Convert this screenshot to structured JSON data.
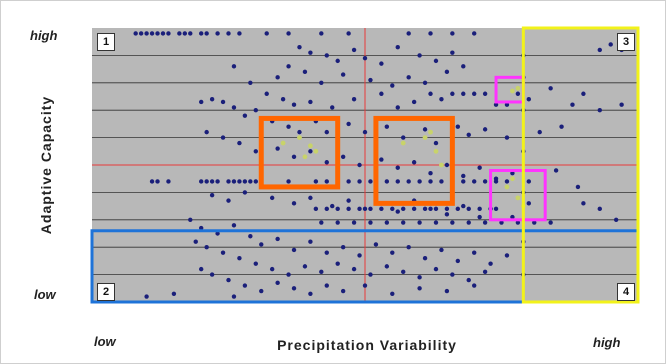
{
  "chart_data": {
    "type": "scatter",
    "xlabel": "Precipitation Variability",
    "ylabel": "Adaptive Capacity",
    "x_tick_labels": [
      "low",
      "high"
    ],
    "y_tick_labels": [
      "high",
      "low"
    ],
    "xlim": [
      0,
      1
    ],
    "ylim": [
      0,
      1
    ],
    "grid": true,
    "quadrant_labels": [
      "1",
      "2",
      "3",
      "4"
    ],
    "colors": {
      "background": "#b8b8b8",
      "points": "#1a1f7a",
      "highlight_points": "#c8d36a",
      "orange_box": "#ff6600",
      "magenta_box": "#ff33ff",
      "blue_box": "#1e73d8",
      "yellow_box": "#f2f21a",
      "divider": "#e83a3a"
    },
    "highlight_boxes": [
      {
        "color": "orange",
        "x": [
          0.31,
          0.45
        ],
        "y": [
          0.42,
          0.67
        ]
      },
      {
        "color": "orange",
        "x": [
          0.52,
          0.66
        ],
        "y": [
          0.36,
          0.67
        ]
      },
      {
        "color": "magenta",
        "x": [
          0.74,
          0.79
        ],
        "y": [
          0.73,
          0.82
        ]
      },
      {
        "color": "magenta",
        "x": [
          0.73,
          0.83
        ],
        "y": [
          0.3,
          0.48
        ]
      },
      {
        "color": "blue",
        "x": [
          0.0,
          1.0
        ],
        "y": [
          0.0,
          0.26
        ]
      },
      {
        "color": "yellow",
        "x": [
          0.79,
          1.0
        ],
        "y": [
          0.0,
          1.0
        ]
      }
    ],
    "series": [
      {
        "points": [
          [
            0.08,
            0.98
          ],
          [
            0.09,
            0.98
          ],
          [
            0.1,
            0.98
          ],
          [
            0.11,
            0.98
          ],
          [
            0.12,
            0.98
          ],
          [
            0.13,
            0.98
          ],
          [
            0.14,
            0.98
          ],
          [
            0.16,
            0.98
          ],
          [
            0.17,
            0.98
          ],
          [
            0.18,
            0.98
          ],
          [
            0.2,
            0.98
          ],
          [
            0.21,
            0.98
          ],
          [
            0.23,
            0.98
          ],
          [
            0.25,
            0.98
          ],
          [
            0.27,
            0.98
          ],
          [
            0.32,
            0.98
          ],
          [
            0.36,
            0.98
          ],
          [
            0.42,
            0.98
          ],
          [
            0.47,
            0.98
          ],
          [
            0.58,
            0.98
          ],
          [
            0.62,
            0.98
          ],
          [
            0.66,
            0.98
          ],
          [
            0.7,
            0.98
          ],
          [
            0.95,
            0.94
          ],
          [
            0.93,
            0.92
          ],
          [
            0.97,
            0.92
          ],
          [
            0.38,
            0.93
          ],
          [
            0.4,
            0.91
          ],
          [
            0.43,
            0.9
          ],
          [
            0.45,
            0.88
          ],
          [
            0.48,
            0.92
          ],
          [
            0.5,
            0.89
          ],
          [
            0.53,
            0.87
          ],
          [
            0.56,
            0.93
          ],
          [
            0.6,
            0.9
          ],
          [
            0.63,
            0.88
          ],
          [
            0.66,
            0.91
          ],
          [
            0.68,
            0.86
          ],
          [
            0.36,
            0.86
          ],
          [
            0.34,
            0.82
          ],
          [
            0.39,
            0.84
          ],
          [
            0.42,
            0.8
          ],
          [
            0.46,
            0.83
          ],
          [
            0.51,
            0.81
          ],
          [
            0.55,
            0.79
          ],
          [
            0.58,
            0.82
          ],
          [
            0.61,
            0.8
          ],
          [
            0.65,
            0.84
          ],
          [
            0.26,
            0.86
          ],
          [
            0.29,
            0.8
          ],
          [
            0.32,
            0.76
          ],
          [
            0.35,
            0.74
          ],
          [
            0.37,
            0.72
          ],
          [
            0.4,
            0.73
          ],
          [
            0.44,
            0.71
          ],
          [
            0.48,
            0.74
          ],
          [
            0.53,
            0.76
          ],
          [
            0.56,
            0.71
          ],
          [
            0.59,
            0.73
          ],
          [
            0.62,
            0.76
          ],
          [
            0.64,
            0.74
          ],
          [
            0.66,
            0.76
          ],
          [
            0.68,
            0.76
          ],
          [
            0.7,
            0.76
          ],
          [
            0.72,
            0.76
          ],
          [
            0.74,
            0.72
          ],
          [
            0.76,
            0.72
          ],
          [
            0.78,
            0.76
          ],
          [
            0.8,
            0.74
          ],
          [
            0.84,
            0.78
          ],
          [
            0.88,
            0.72
          ],
          [
            0.9,
            0.76
          ],
          [
            0.93,
            0.7
          ],
          [
            0.97,
            0.72
          ],
          [
            0.2,
            0.73
          ],
          [
            0.22,
            0.74
          ],
          [
            0.24,
            0.73
          ],
          [
            0.26,
            0.71
          ],
          [
            0.28,
            0.68
          ],
          [
            0.3,
            0.7
          ],
          [
            0.33,
            0.66
          ],
          [
            0.36,
            0.64
          ],
          [
            0.38,
            0.62
          ],
          [
            0.41,
            0.66
          ],
          [
            0.43,
            0.62
          ],
          [
            0.47,
            0.65
          ],
          [
            0.5,
            0.62
          ],
          [
            0.54,
            0.64
          ],
          [
            0.57,
            0.6
          ],
          [
            0.61,
            0.63
          ],
          [
            0.63,
            0.58
          ],
          [
            0.67,
            0.64
          ],
          [
            0.69,
            0.61
          ],
          [
            0.72,
            0.63
          ],
          [
            0.76,
            0.6
          ],
          [
            0.82,
            0.62
          ],
          [
            0.86,
            0.64
          ],
          [
            0.21,
            0.62
          ],
          [
            0.24,
            0.6
          ],
          [
            0.27,
            0.58
          ],
          [
            0.3,
            0.55
          ],
          [
            0.34,
            0.56
          ],
          [
            0.37,
            0.53
          ],
          [
            0.4,
            0.55
          ],
          [
            0.43,
            0.51
          ],
          [
            0.46,
            0.53
          ],
          [
            0.49,
            0.5
          ],
          [
            0.53,
            0.52
          ],
          [
            0.56,
            0.49
          ],
          [
            0.59,
            0.51
          ],
          [
            0.62,
            0.47
          ],
          [
            0.65,
            0.5
          ],
          [
            0.68,
            0.46
          ],
          [
            0.71,
            0.49
          ],
          [
            0.74,
            0.45
          ],
          [
            0.77,
            0.47
          ],
          [
            0.8,
            0.44
          ],
          [
            0.85,
            0.48
          ],
          [
            0.89,
            0.42
          ],
          [
            0.41,
            0.44
          ],
          [
            0.43,
            0.44
          ],
          [
            0.45,
            0.44
          ],
          [
            0.47,
            0.44
          ],
          [
            0.49,
            0.44
          ],
          [
            0.51,
            0.44
          ],
          [
            0.52,
            0.44
          ],
          [
            0.54,
            0.44
          ],
          [
            0.56,
            0.44
          ],
          [
            0.58,
            0.44
          ],
          [
            0.6,
            0.44
          ],
          [
            0.62,
            0.44
          ],
          [
            0.64,
            0.44
          ],
          [
            0.66,
            0.44
          ],
          [
            0.68,
            0.44
          ],
          [
            0.7,
            0.44
          ],
          [
            0.72,
            0.44
          ],
          [
            0.74,
            0.44
          ],
          [
            0.76,
            0.44
          ],
          [
            0.2,
            0.44
          ],
          [
            0.21,
            0.44
          ],
          [
            0.22,
            0.44
          ],
          [
            0.23,
            0.44
          ],
          [
            0.25,
            0.44
          ],
          [
            0.26,
            0.44
          ],
          [
            0.27,
            0.44
          ],
          [
            0.28,
            0.44
          ],
          [
            0.29,
            0.44
          ],
          [
            0.3,
            0.44
          ],
          [
            0.31,
            0.44
          ],
          [
            0.36,
            0.44
          ],
          [
            0.38,
            0.42
          ],
          [
            0.11,
            0.44
          ],
          [
            0.12,
            0.44
          ],
          [
            0.14,
            0.44
          ],
          [
            0.22,
            0.39
          ],
          [
            0.25,
            0.37
          ],
          [
            0.28,
            0.4
          ],
          [
            0.33,
            0.38
          ],
          [
            0.37,
            0.36
          ],
          [
            0.4,
            0.38
          ],
          [
            0.44,
            0.35
          ],
          [
            0.47,
            0.37
          ],
          [
            0.5,
            0.34
          ],
          [
            0.53,
            0.36
          ],
          [
            0.56,
            0.33
          ],
          [
            0.59,
            0.37
          ],
          [
            0.62,
            0.34
          ],
          [
            0.65,
            0.32
          ],
          [
            0.68,
            0.35
          ],
          [
            0.71,
            0.31
          ],
          [
            0.74,
            0.34
          ],
          [
            0.77,
            0.31
          ],
          [
            0.8,
            0.36
          ],
          [
            0.9,
            0.36
          ],
          [
            0.93,
            0.34
          ],
          [
            0.96,
            0.3
          ],
          [
            0.41,
            0.34
          ],
          [
            0.43,
            0.34
          ],
          [
            0.45,
            0.34
          ],
          [
            0.47,
            0.34
          ],
          [
            0.49,
            0.34
          ],
          [
            0.51,
            0.34
          ],
          [
            0.53,
            0.34
          ],
          [
            0.55,
            0.34
          ],
          [
            0.57,
            0.34
          ],
          [
            0.59,
            0.34
          ],
          [
            0.61,
            0.34
          ],
          [
            0.63,
            0.34
          ],
          [
            0.65,
            0.34
          ],
          [
            0.67,
            0.34
          ],
          [
            0.69,
            0.34
          ],
          [
            0.71,
            0.34
          ],
          [
            0.73,
            0.34
          ],
          [
            0.42,
            0.29
          ],
          [
            0.45,
            0.29
          ],
          [
            0.48,
            0.29
          ],
          [
            0.51,
            0.29
          ],
          [
            0.54,
            0.29
          ],
          [
            0.57,
            0.29
          ],
          [
            0.6,
            0.29
          ],
          [
            0.63,
            0.29
          ],
          [
            0.66,
            0.29
          ],
          [
            0.69,
            0.29
          ],
          [
            0.72,
            0.29
          ],
          [
            0.75,
            0.29
          ],
          [
            0.78,
            0.29
          ],
          [
            0.81,
            0.29
          ],
          [
            0.84,
            0.29
          ],
          [
            0.18,
            0.3
          ],
          [
            0.2,
            0.27
          ],
          [
            0.23,
            0.25
          ],
          [
            0.26,
            0.28
          ],
          [
            0.29,
            0.24
          ],
          [
            0.31,
            0.21
          ],
          [
            0.34,
            0.23
          ],
          [
            0.37,
            0.19
          ],
          [
            0.4,
            0.22
          ],
          [
            0.43,
            0.18
          ],
          [
            0.46,
            0.2
          ],
          [
            0.49,
            0.17
          ],
          [
            0.52,
            0.21
          ],
          [
            0.55,
            0.18
          ],
          [
            0.58,
            0.2
          ],
          [
            0.61,
            0.16
          ],
          [
            0.64,
            0.19
          ],
          [
            0.67,
            0.15
          ],
          [
            0.7,
            0.18
          ],
          [
            0.73,
            0.14
          ],
          [
            0.76,
            0.17
          ],
          [
            0.19,
            0.22
          ],
          [
            0.21,
            0.2
          ],
          [
            0.24,
            0.18
          ],
          [
            0.27,
            0.16
          ],
          [
            0.3,
            0.14
          ],
          [
            0.33,
            0.12
          ],
          [
            0.36,
            0.1
          ],
          [
            0.39,
            0.13
          ],
          [
            0.42,
            0.11
          ],
          [
            0.45,
            0.14
          ],
          [
            0.48,
            0.12
          ],
          [
            0.51,
            0.1
          ],
          [
            0.54,
            0.13
          ],
          [
            0.57,
            0.11
          ],
          [
            0.6,
            0.09
          ],
          [
            0.63,
            0.12
          ],
          [
            0.66,
            0.1
          ],
          [
            0.69,
            0.08
          ],
          [
            0.72,
            0.11
          ],
          [
            0.2,
            0.12
          ],
          [
            0.22,
            0.1
          ],
          [
            0.25,
            0.08
          ],
          [
            0.28,
            0.06
          ],
          [
            0.31,
            0.04
          ],
          [
            0.34,
            0.07
          ],
          [
            0.37,
            0.05
          ],
          [
            0.4,
            0.03
          ],
          [
            0.43,
            0.06
          ],
          [
            0.46,
            0.04
          ],
          [
            0.5,
            0.06
          ],
          [
            0.55,
            0.03
          ],
          [
            0.6,
            0.05
          ],
          [
            0.65,
            0.04
          ],
          [
            0.7,
            0.06
          ],
          [
            0.1,
            0.02
          ],
          [
            0.15,
            0.03
          ],
          [
            0.26,
            0.02
          ],
          [
            0.79,
            0.1
          ],
          [
            0.79,
            0.22
          ],
          [
            0.79,
            0.4
          ],
          [
            0.79,
            0.55
          ],
          [
            0.79,
            0.7
          ],
          [
            0.79,
            0.82
          ],
          [
            0.79,
            0.9
          ]
        ]
      },
      {
        "points": [
          [
            0.38,
            0.6
          ],
          [
            0.4,
            0.57
          ],
          [
            0.41,
            0.55
          ],
          [
            0.35,
            0.58
          ],
          [
            0.39,
            0.53
          ],
          [
            0.57,
            0.58
          ],
          [
            0.61,
            0.6
          ],
          [
            0.63,
            0.55
          ],
          [
            0.64,
            0.5
          ],
          [
            0.62,
            0.62
          ],
          [
            0.77,
            0.77
          ],
          [
            0.78,
            0.78
          ],
          [
            0.76,
            0.42
          ],
          [
            0.78,
            0.38
          ],
          [
            0.79,
            0.35
          ],
          [
            0.77,
            0.45
          ]
        ]
      }
    ]
  }
}
